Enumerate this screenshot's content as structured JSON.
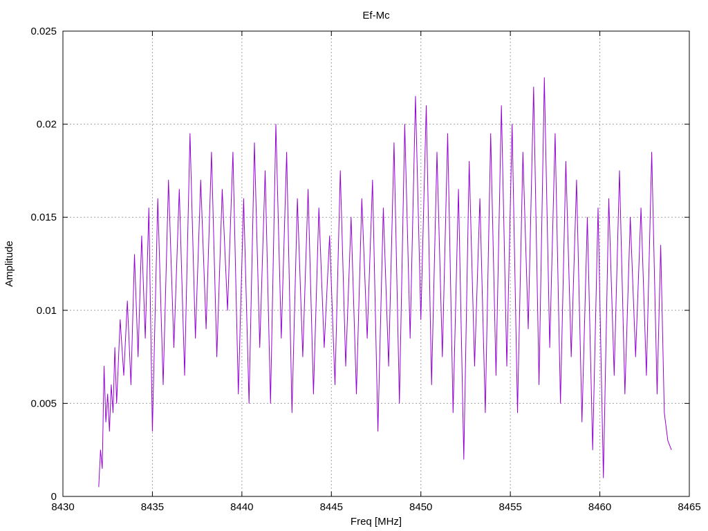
{
  "chart_data": {
    "type": "line",
    "title": "Ef-Mc",
    "xlabel": "Freq [MHz]",
    "ylabel": "Amplitude",
    "xlim": [
      8430,
      8465
    ],
    "ylim": [
      0,
      0.025
    ],
    "xticks": [
      "8430",
      "8435",
      "8440",
      "8445",
      "8450",
      "8455",
      "8460",
      "8465"
    ],
    "yticks": [
      "0",
      "0.005",
      "0.01",
      "0.015",
      "0.02",
      "0.025"
    ],
    "grid": true,
    "series": [
      {
        "color": "#9400d3",
        "sampling": "approximate envelope traced from the rendered trace; values are amplitude at frequency",
        "x": [
          8432.0,
          8432.1,
          8432.2,
          8432.3,
          8432.4,
          8432.5,
          8432.6,
          8432.7,
          8432.8,
          8432.9,
          8433.0,
          8433.2,
          8433.4,
          8433.6,
          8433.8,
          8434.0,
          8434.2,
          8434.4,
          8434.6,
          8434.8,
          8435.0,
          8435.3,
          8435.6,
          8435.9,
          8436.2,
          8436.5,
          8436.8,
          8437.1,
          8437.4,
          8437.7,
          8438.0,
          8438.3,
          8438.6,
          8438.9,
          8439.2,
          8439.5,
          8439.8,
          8440.1,
          8440.4,
          8440.7,
          8441.0,
          8441.3,
          8441.6,
          8441.9,
          8442.2,
          8442.5,
          8442.8,
          8443.1,
          8443.4,
          8443.7,
          8444.0,
          8444.3,
          8444.6,
          8444.9,
          8445.2,
          8445.5,
          8445.8,
          8446.1,
          8446.4,
          8446.7,
          8447.0,
          8447.3,
          8447.6,
          8447.9,
          8448.2,
          8448.5,
          8448.8,
          8449.1,
          8449.4,
          8449.7,
          8450.0,
          8450.3,
          8450.6,
          8450.9,
          8451.2,
          8451.5,
          8451.8,
          8452.1,
          8452.4,
          8452.7,
          8453.0,
          8453.3,
          8453.6,
          8453.9,
          8454.2,
          8454.5,
          8454.8,
          8455.1,
          8455.4,
          8455.7,
          8456.0,
          8456.3,
          8456.6,
          8456.9,
          8457.2,
          8457.5,
          8457.8,
          8458.1,
          8458.4,
          8458.7,
          8459.0,
          8459.3,
          8459.6,
          8459.9,
          8460.2,
          8460.5,
          8460.8,
          8461.1,
          8461.4,
          8461.7,
          8462.0,
          8462.3,
          8462.6,
          8462.9,
          8463.2,
          8463.4,
          8463.6,
          8463.8,
          8464.0
        ],
        "values": [
          0.0005,
          0.0025,
          0.0015,
          0.007,
          0.004,
          0.0055,
          0.0035,
          0.006,
          0.0045,
          0.008,
          0.005,
          0.0095,
          0.0065,
          0.0105,
          0.006,
          0.013,
          0.0075,
          0.014,
          0.0085,
          0.0155,
          0.0035,
          0.016,
          0.006,
          0.017,
          0.008,
          0.0165,
          0.0065,
          0.0195,
          0.0085,
          0.017,
          0.009,
          0.0185,
          0.0075,
          0.0165,
          0.01,
          0.0185,
          0.0055,
          0.016,
          0.005,
          0.019,
          0.008,
          0.0175,
          0.005,
          0.02,
          0.0085,
          0.0185,
          0.0045,
          0.016,
          0.0075,
          0.0165,
          0.0055,
          0.0155,
          0.008,
          0.014,
          0.006,
          0.0175,
          0.007,
          0.015,
          0.0055,
          0.016,
          0.0085,
          0.017,
          0.0035,
          0.0155,
          0.007,
          0.019,
          0.005,
          0.02,
          0.0085,
          0.0215,
          0.0095,
          0.021,
          0.006,
          0.0185,
          0.0075,
          0.0195,
          0.0045,
          0.0165,
          0.002,
          0.018,
          0.007,
          0.016,
          0.0045,
          0.0195,
          0.0065,
          0.021,
          0.007,
          0.02,
          0.0045,
          0.0185,
          0.009,
          0.022,
          0.006,
          0.0225,
          0.008,
          0.0195,
          0.005,
          0.018,
          0.0075,
          0.017,
          0.004,
          0.015,
          0.0025,
          0.0155,
          0.001,
          0.016,
          0.0065,
          0.0175,
          0.0055,
          0.015,
          0.0075,
          0.0155,
          0.0065,
          0.0185,
          0.0055,
          0.0135,
          0.0045,
          0.003,
          0.0025
        ]
      }
    ]
  }
}
